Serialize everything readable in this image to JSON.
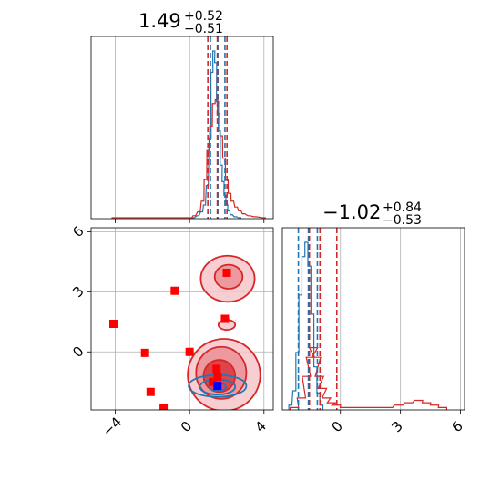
{
  "chart_data": {
    "type": "corner",
    "colors": {
      "red": "#d62728",
      "blue": "#1f77b4",
      "marker_red": "#ff0000",
      "marker_blue": "#0000ff"
    },
    "params": [
      "",
      ""
    ],
    "grid": true,
    "titles": [
      {
        "param_index": 0,
        "median": "1.49",
        "plus": "+0.52",
        "minus": "−0.51"
      },
      {
        "param_index": 1,
        "median": "−1.02",
        "plus": "+0.84",
        "minus": "−0.53"
      }
    ],
    "x_ticks": [
      -4,
      0,
      4
    ],
    "y_ticks": [
      6,
      3,
      0
    ],
    "x2_ticks": [
      0,
      3,
      6
    ],
    "ranges": {
      "x": [
        -5.3,
        4.5
      ],
      "y": [
        -2.9,
        6.2
      ]
    },
    "marginal_x": {
      "red_quantiles": [
        0.98,
        1.49,
        2.01
      ],
      "blue_quantiles": [
        1.12,
        1.52,
        1.9
      ],
      "red_hist": [
        {
          "x": -4.1,
          "y": 1
        },
        {
          "x": 0.05,
          "y": 1
        },
        {
          "x": 0.25,
          "y": 3
        },
        {
          "x": 0.5,
          "y": 7
        },
        {
          "x": 0.7,
          "y": 18
        },
        {
          "x": 0.85,
          "y": 40
        },
        {
          "x": 1.0,
          "y": 70
        },
        {
          "x": 1.15,
          "y": 95
        },
        {
          "x": 1.3,
          "y": 118
        },
        {
          "x": 1.45,
          "y": 122
        },
        {
          "x": 1.55,
          "y": 108
        },
        {
          "x": 1.7,
          "y": 85
        },
        {
          "x": 1.85,
          "y": 62
        },
        {
          "x": 2.0,
          "y": 40
        },
        {
          "x": 2.15,
          "y": 26
        },
        {
          "x": 2.3,
          "y": 18
        },
        {
          "x": 2.5,
          "y": 12
        },
        {
          "x": 2.7,
          "y": 8
        },
        {
          "x": 2.9,
          "y": 5
        },
        {
          "x": 3.2,
          "y": 3
        },
        {
          "x": 3.5,
          "y": 2
        },
        {
          "x": 4.0,
          "y": 1
        }
      ],
      "blue_hist": [
        {
          "x": 0.2,
          "y": 1
        },
        {
          "x": 0.45,
          "y": 3
        },
        {
          "x": 0.65,
          "y": 7
        },
        {
          "x": 0.8,
          "y": 14
        },
        {
          "x": 0.95,
          "y": 34
        },
        {
          "x": 1.1,
          "y": 82
        },
        {
          "x": 1.2,
          "y": 150
        },
        {
          "x": 1.3,
          "y": 172
        },
        {
          "x": 1.4,
          "y": 160
        },
        {
          "x": 1.5,
          "y": 120
        },
        {
          "x": 1.6,
          "y": 90
        },
        {
          "x": 1.7,
          "y": 55
        },
        {
          "x": 1.8,
          "y": 38
        },
        {
          "x": 1.9,
          "y": 24
        },
        {
          "x": 2.0,
          "y": 14
        },
        {
          "x": 2.1,
          "y": 8
        },
        {
          "x": 2.25,
          "y": 4
        },
        {
          "x": 2.45,
          "y": 2
        },
        {
          "x": 2.7,
          "y": 1
        }
      ]
    },
    "marginal_y": {
      "range": [
        -2.9,
        6.2
      ],
      "red_quantiles": [
        -1.55,
        -1.02,
        -0.18
      ],
      "blue_quantiles": [
        -2.1,
        -1.6,
        -1.15
      ],
      "red_hist": [
        {
          "x": -2.3,
          "y": 1
        },
        {
          "x": -1.95,
          "y": 5
        },
        {
          "x": -1.7,
          "y": 14
        },
        {
          "x": -1.5,
          "y": 22
        },
        {
          "x": -1.35,
          "y": 26
        },
        {
          "x": -1.2,
          "y": 22
        },
        {
          "x": -1.05,
          "y": 14
        },
        {
          "x": -0.9,
          "y": 9
        },
        {
          "x": -0.7,
          "y": 5
        },
        {
          "x": -0.45,
          "y": 3
        },
        {
          "x": -0.2,
          "y": 2
        },
        {
          "x": 0.2,
          "y": 1
        },
        {
          "x": 0.7,
          "y": 1
        },
        {
          "x": 1.2,
          "y": 1
        },
        {
          "x": 1.8,
          "y": 1
        },
        {
          "x": 2.4,
          "y": 1
        },
        {
          "x": 2.9,
          "y": 2
        },
        {
          "x": 3.4,
          "y": 3
        },
        {
          "x": 3.9,
          "y": 4
        },
        {
          "x": 4.3,
          "y": 3
        },
        {
          "x": 4.7,
          "y": 2
        },
        {
          "x": 5.1,
          "y": 1
        }
      ],
      "blue_hist": [
        {
          "x": -2.5,
          "y": 2
        },
        {
          "x": -2.3,
          "y": 8
        },
        {
          "x": -2.15,
          "y": 24
        },
        {
          "x": -2.0,
          "y": 48
        },
        {
          "x": -1.85,
          "y": 64
        },
        {
          "x": -1.7,
          "y": 70
        },
        {
          "x": -1.55,
          "y": 60
        },
        {
          "x": -1.4,
          "y": 40
        },
        {
          "x": -1.25,
          "y": 18
        },
        {
          "x": -1.1,
          "y": 7
        },
        {
          "x": -0.95,
          "y": 2
        }
      ]
    },
    "joint": {
      "red_markers": [
        {
          "x": 2.0,
          "y": 3.95
        },
        {
          "x": -0.8,
          "y": 3.05
        },
        {
          "x": 1.9,
          "y": 1.65
        },
        {
          "x": -4.1,
          "y": 1.4
        },
        {
          "x": -2.4,
          "y": -0.05
        },
        {
          "x": 0.0,
          "y": 0.0
        },
        {
          "x": 1.45,
          "y": -0.85
        },
        {
          "x": 1.5,
          "y": -1.25
        },
        {
          "x": 1.25,
          "y": -1.5
        },
        {
          "x": -2.1,
          "y": -2.0
        },
        {
          "x": -1.4,
          "y": -2.8
        }
      ],
      "blue_markers": [
        {
          "x": 1.5,
          "y": -1.7
        }
      ],
      "contours": [
        {
          "series": "red",
          "level": 1,
          "center": [
            2.05,
            3.65
          ],
          "rx": 1.45,
          "ry": 1.15
        },
        {
          "series": "red",
          "level": 2,
          "center": [
            2.1,
            3.75
          ],
          "rx": 0.75,
          "ry": 0.6
        },
        {
          "series": "red",
          "level": 1,
          "center": [
            2.0,
            1.35
          ],
          "rx": 0.45,
          "ry": 0.25
        },
        {
          "series": "red",
          "level": 1,
          "center": [
            1.85,
            -1.15
          ],
          "rx": 1.95,
          "ry": 1.8
        },
        {
          "series": "red",
          "level": 2,
          "center": [
            1.7,
            -1.05
          ],
          "rx": 1.35,
          "ry": 1.3
        },
        {
          "series": "red",
          "level": 3,
          "center": [
            1.6,
            -1.2
          ],
          "rx": 0.85,
          "ry": 0.8
        },
        {
          "series": "blue",
          "level": 1,
          "center": [
            1.5,
            -1.7
          ],
          "rx": 1.55,
          "ry": 0.55
        },
        {
          "series": "blue",
          "level": 2,
          "center": [
            1.5,
            -1.75
          ],
          "rx": 0.95,
          "ry": 0.38
        },
        {
          "series": "blue",
          "level": 3,
          "center": [
            1.5,
            -1.75
          ],
          "rx": 0.45,
          "ry": 0.2
        }
      ]
    }
  }
}
